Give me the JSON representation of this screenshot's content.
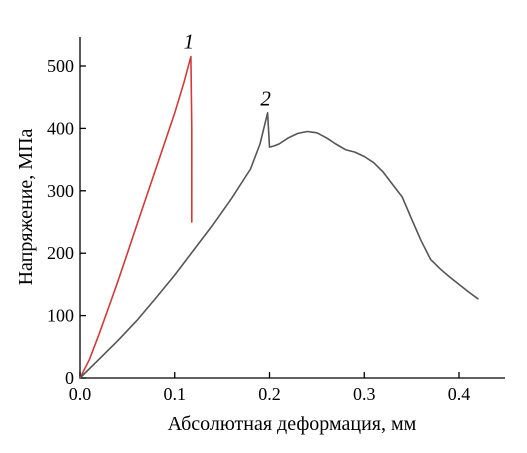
{
  "chart_data": {
    "type": "line",
    "xlabel": "Абсолютная деформация, мм",
    "ylabel": "Напряжение, МПа",
    "xlim": [
      0.0,
      0.45
    ],
    "ylim": [
      0,
      540
    ],
    "xticks": [
      0.0,
      0.1,
      0.2,
      0.3,
      0.4
    ],
    "xtick_labels": [
      "0.0",
      "0.1",
      "0.2",
      "0.3",
      "0.4"
    ],
    "yticks": [
      0,
      100,
      200,
      300,
      400,
      500
    ],
    "ytick_labels": [
      "0",
      "100",
      "200",
      "300",
      "400",
      "500"
    ],
    "grid": false,
    "series": [
      {
        "name": "1",
        "color": "#d23a3a",
        "x": [
          0.0,
          0.01,
          0.02,
          0.03,
          0.04,
          0.05,
          0.06,
          0.07,
          0.08,
          0.09,
          0.1,
          0.11,
          0.117,
          0.118,
          0.118
        ],
        "y": [
          0,
          30,
          70,
          112,
          155,
          200,
          245,
          290,
          335,
          380,
          425,
          475,
          515,
          400,
          250
        ]
      },
      {
        "name": "2",
        "color": "#555555",
        "x": [
          0.0,
          0.02,
          0.04,
          0.06,
          0.08,
          0.1,
          0.12,
          0.14,
          0.16,
          0.18,
          0.19,
          0.198,
          0.2,
          0.205,
          0.21,
          0.22,
          0.23,
          0.24,
          0.25,
          0.26,
          0.27,
          0.28,
          0.29,
          0.3,
          0.31,
          0.32,
          0.33,
          0.34,
          0.35,
          0.36,
          0.37,
          0.38,
          0.39,
          0.4,
          0.41,
          0.42
        ],
        "y": [
          0,
          30,
          60,
          92,
          128,
          165,
          205,
          245,
          288,
          335,
          375,
          425,
          370,
          372,
          375,
          385,
          392,
          395,
          393,
          385,
          375,
          366,
          362,
          355,
          345,
          330,
          310,
          290,
          255,
          220,
          190,
          175,
          162,
          150,
          138,
          127
        ]
      }
    ],
    "annotations": [
      {
        "text": "1",
        "x": 0.117,
        "y": 528
      },
      {
        "text": "2",
        "x": 0.198,
        "y": 437
      }
    ]
  }
}
